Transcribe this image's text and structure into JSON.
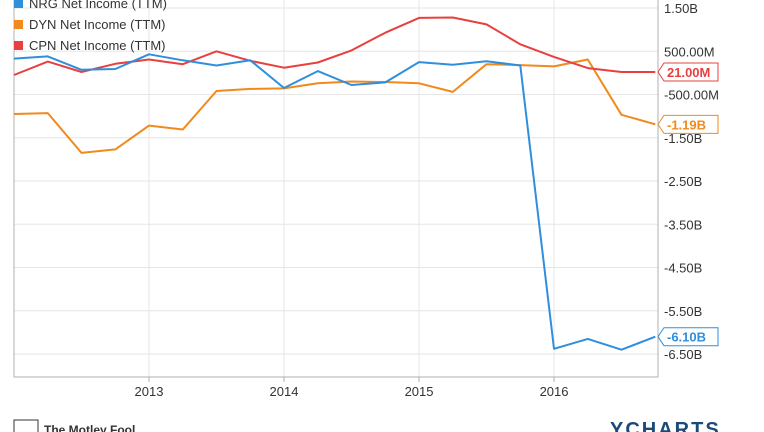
{
  "chart_data": {
    "type": "line",
    "x_ticks": [
      "2013",
      "2014",
      "2015",
      "2016"
    ],
    "y_ticks": [
      "1.50B",
      "500.00M",
      "-500.00M",
      "-1.50B",
      "-2.50B",
      "-3.50B",
      "-4.50B",
      "-5.50B",
      "-6.50B"
    ],
    "y_tick_values": [
      1.5,
      0.5,
      -0.5,
      -1.5,
      -2.5,
      -3.5,
      -4.5,
      -5.5,
      -6.5
    ],
    "ylim": [
      -7.0,
      1.9
    ],
    "xlim": [
      2012.0,
      2016.77
    ],
    "grid": true,
    "legend_position": "top-left",
    "series": [
      {
        "name": "NRG Net Income (TTM)",
        "color": "#2f8fdd",
        "end_label": "-6.10B",
        "x": [
          2012.0,
          2012.25,
          2012.5,
          2012.75,
          2013.0,
          2013.25,
          2013.5,
          2013.75,
          2014.0,
          2014.25,
          2014.5,
          2014.75,
          2015.0,
          2015.25,
          2015.5,
          2015.75,
          2016.0,
          2016.25,
          2016.5,
          2016.75
        ],
        "values": [
          0.33,
          0.38,
          0.07,
          0.09,
          0.43,
          0.29,
          0.17,
          0.29,
          -0.35,
          0.04,
          -0.28,
          -0.22,
          0.25,
          0.19,
          0.27,
          0.17,
          -6.38,
          -6.15,
          -6.4,
          -6.1
        ]
      },
      {
        "name": "DYN Net Income (TTM)",
        "color": "#f08a1c",
        "end_label": "-1.19B",
        "x": [
          2012.0,
          2012.25,
          2012.5,
          2012.75,
          2013.0,
          2013.25,
          2013.5,
          2013.75,
          2014.0,
          2014.25,
          2014.5,
          2014.75,
          2015.0,
          2015.25,
          2015.5,
          2015.75,
          2016.0,
          2016.25,
          2016.5,
          2016.75
        ],
        "values": [
          -0.95,
          -0.93,
          -1.85,
          -1.77,
          -1.22,
          -1.31,
          -0.42,
          -0.37,
          -0.36,
          -0.24,
          -0.2,
          -0.21,
          -0.24,
          -0.44,
          0.2,
          0.18,
          0.15,
          0.31,
          -0.97,
          -1.19
        ]
      },
      {
        "name": "CPN Net Income (TTM)",
        "color": "#e8403f",
        "end_label": "21.00M",
        "x": [
          2012.0,
          2012.25,
          2012.5,
          2012.75,
          2013.0,
          2013.25,
          2013.5,
          2013.75,
          2014.0,
          2014.25,
          2014.5,
          2014.75,
          2015.0,
          2015.25,
          2015.5,
          2015.75,
          2016.0,
          2016.25,
          2016.5,
          2016.75
        ],
        "values": [
          -0.05,
          0.26,
          0.02,
          0.21,
          0.31,
          0.2,
          0.5,
          0.28,
          0.12,
          0.24,
          0.52,
          0.93,
          1.27,
          1.28,
          1.12,
          0.66,
          0.37,
          0.11,
          0.02,
          0.02
        ]
      }
    ]
  },
  "footer": {
    "left_text": "The Motley Fool",
    "right_text": "YCHARTS"
  }
}
